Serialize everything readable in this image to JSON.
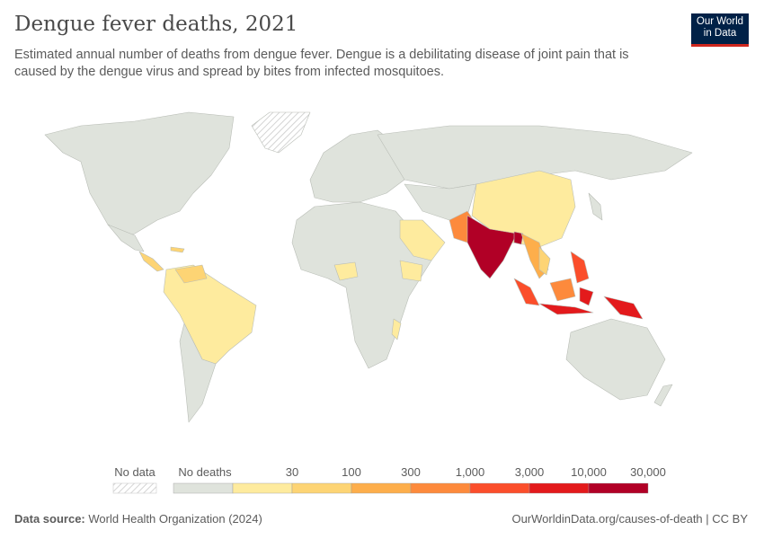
{
  "header": {
    "title": "Dengue fever deaths, 2021",
    "subtitle": "Estimated annual number of deaths from dengue fever. Dengue is a debilitating disease of joint pain that is caused by the dengue virus and spread by bites from infected mosquitoes.",
    "logo_text": "Our World in Data"
  },
  "legend": {
    "no_data_label": "No data",
    "no_deaths_label": "No deaths",
    "no_deaths_color": "#dfe3dc",
    "tick_labels": [
      "30",
      "100",
      "300",
      "1,000",
      "3,000",
      "10,000",
      "30,000"
    ],
    "bin_colors": [
      "#feeb9e",
      "#fdd474",
      "#fdae4b",
      "#fd8a3c",
      "#fb4e2b",
      "#e31a1c",
      "#b10026"
    ]
  },
  "footer": {
    "source_label": "Data source:",
    "source_value": "World Health Organization (2024)",
    "url": "OurWorldinData.org/causes-of-death | CC BY"
  }
}
